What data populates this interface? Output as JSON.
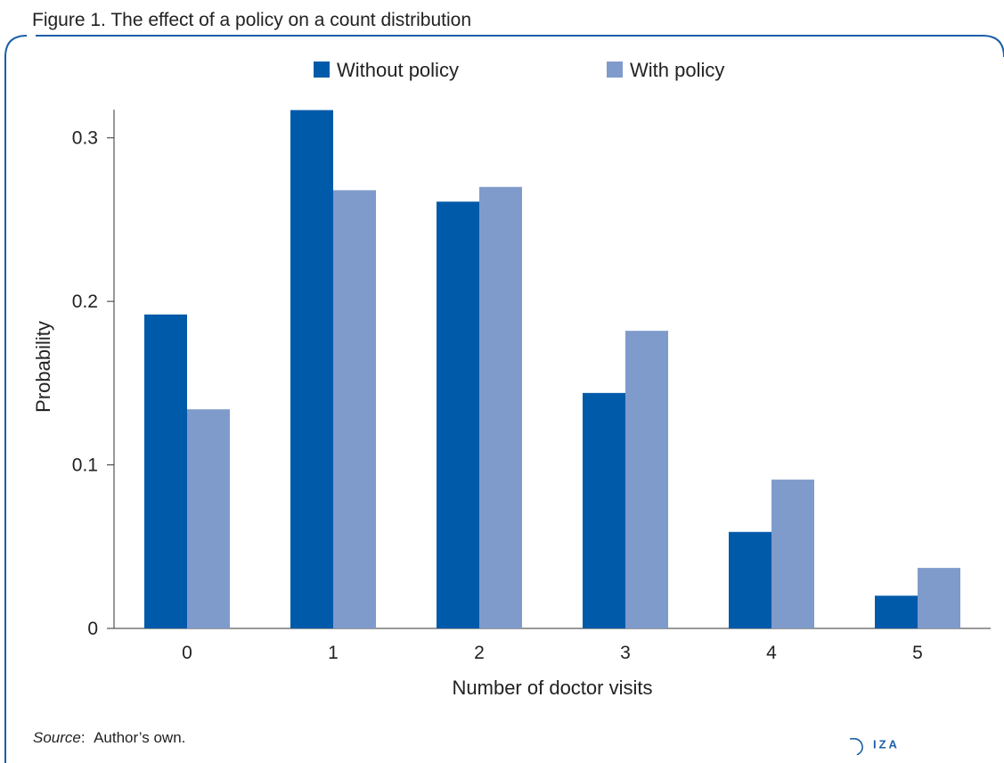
{
  "figure": {
    "title": "Figure 1. The effect of a policy on a count distribution",
    "source_label": "Source",
    "source_sep": ":",
    "source_text": "Author’s own.",
    "logo_text": "IZA"
  },
  "colors": {
    "frame": "#1b5fa8",
    "without_policy": "#005aaa",
    "with_policy": "#7f9bcb",
    "axis": "#333333"
  },
  "chart_data": {
    "type": "bar",
    "categories": [
      "0",
      "1",
      "2",
      "3",
      "4",
      "5"
    ],
    "series": [
      {
        "name": "Without policy",
        "values": [
          0.192,
          0.317,
          0.261,
          0.144,
          0.059,
          0.02
        ]
      },
      {
        "name": "With policy",
        "values": [
          0.134,
          0.268,
          0.27,
          0.182,
          0.091,
          0.037
        ]
      }
    ],
    "xlabel": "Number of doctor visits",
    "ylabel": "Probability",
    "ylim": [
      0,
      0.32
    ],
    "yticks": [
      0,
      0.1,
      0.2,
      0.3
    ],
    "ytick_labels": [
      "0",
      "0.1",
      "0.2",
      "0.3"
    ],
    "grid": false,
    "legend_position": "top-center"
  }
}
